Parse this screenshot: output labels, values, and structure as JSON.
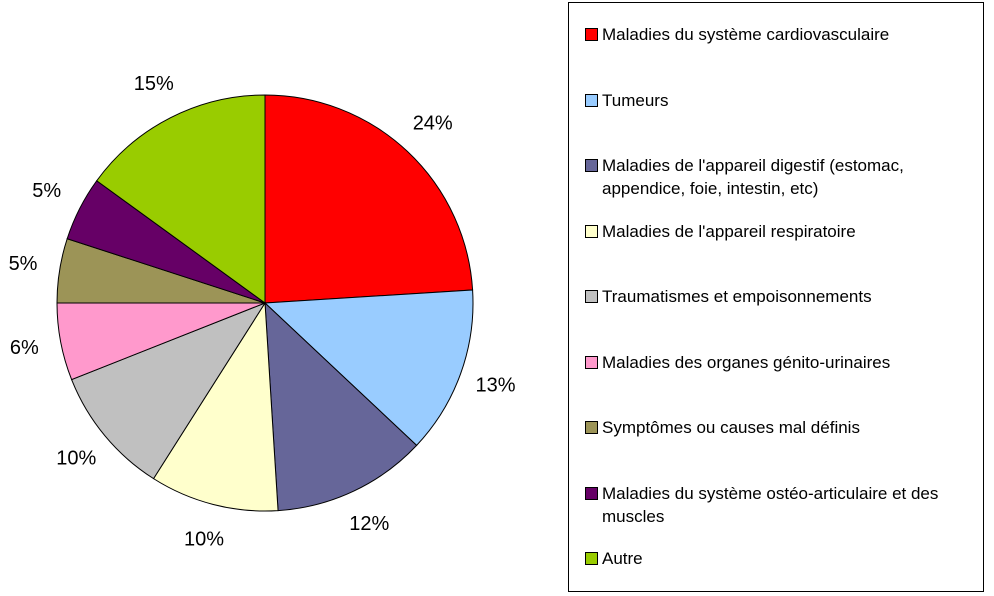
{
  "chart_data": {
    "type": "pie",
    "categories": [
      "Maladies du système cardiovasculaire",
      "Tumeurs",
      "Maladies de l'appareil digestif (estomac, appendice, foie, intestin, etc)",
      "Maladies de l'appareil respiratoire",
      "Traumatismes et empoisonnements",
      "Maladies des organes génito-urinaires",
      "Symptômes ou causes mal définis",
      "Maladies du système ostéo-articulaire et des muscles",
      "Autre"
    ],
    "values": [
      24,
      13,
      12,
      10,
      10,
      6,
      5,
      5,
      15
    ],
    "value_labels": [
      "24%",
      "13%",
      "12%",
      "10%",
      "10%",
      "6%",
      "5%",
      "5%",
      "15%"
    ],
    "colors": [
      "#ff0000",
      "#99ccff",
      "#666699",
      "#ffffcc",
      "#c0c0c0",
      "#ff99cc",
      "#9c9457",
      "#660066",
      "#99cc00"
    ],
    "legend": "right"
  }
}
